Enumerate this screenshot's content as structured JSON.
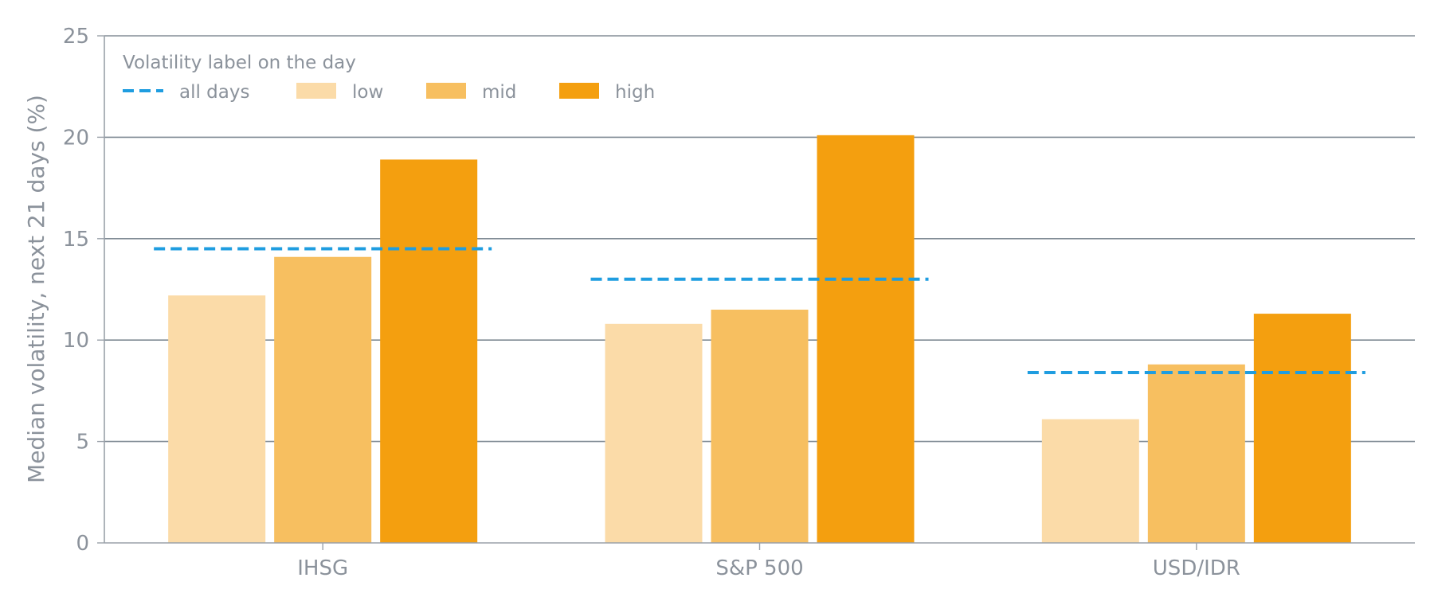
{
  "chart_data": {
    "type": "bar",
    "categories": [
      "IHSG",
      "S&P 500",
      "USD/IDR"
    ],
    "series": [
      {
        "name": "low",
        "color": "#fbdba8",
        "values": [
          12.2,
          10.8,
          6.1
        ]
      },
      {
        "name": "mid",
        "color": "#f7bf60",
        "values": [
          14.1,
          11.5,
          8.8
        ]
      },
      {
        "name": "high",
        "color": "#f49f0f",
        "values": [
          18.9,
          20.1,
          11.3
        ]
      }
    ],
    "reference_line": {
      "name": "all days",
      "color": "#1f9de0",
      "style": "dashed",
      "values": [
        14.5,
        13.0,
        8.4
      ]
    },
    "ylabel": "Median volatility, next 21 days (%)",
    "xlabel": "",
    "ylim": [
      0,
      25
    ],
    "yticks": [
      0,
      5,
      10,
      15,
      20,
      25
    ],
    "grid": "horizontal",
    "legend": {
      "title": "Volatility label on the day",
      "placement": "top-left",
      "entries": [
        "all days",
        "low",
        "mid",
        "high"
      ]
    }
  }
}
